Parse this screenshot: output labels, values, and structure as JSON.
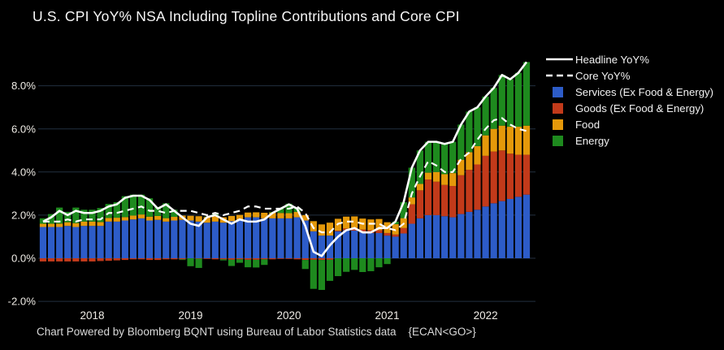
{
  "window": {
    "background": "#000000"
  },
  "title": "U.S. CPI YoY% NSA Including Topline Contributions and Core CPI",
  "footer": "Chart Powered by Bloomberg BQNT using Bureau of Labor Statistics data    {ECAN<GO>}",
  "legend": [
    {
      "label": "Headline YoY%",
      "swatch": "line-solid",
      "color": "#ffffff"
    },
    {
      "label": "Core YoY%",
      "swatch": "line-dashed",
      "color": "#ffffff"
    },
    {
      "label": "Services (Ex Food & Energy)",
      "swatch": "square",
      "color": "#2d5cc8"
    },
    {
      "label": "Goods (Ex Food & Energy)",
      "swatch": "square",
      "color": "#c23a1a"
    },
    {
      "label": "Food",
      "swatch": "square",
      "color": "#e5990a"
    },
    {
      "label": "Energy",
      "swatch": "square",
      "color": "#1e8a1e"
    }
  ],
  "chart_data": {
    "type": "bar",
    "subtype": "stacked-monthly-contributions-with-overlay-lines",
    "title": "U.S. CPI YoY% NSA Including Topline Contributions and Core CPI",
    "grid": true,
    "legend_position": "top-right",
    "background_color": "#000000",
    "grid_color": "#233140",
    "tick_color": "#efece6",
    "ylim": [
      -2.4,
      9.6
    ],
    "x": [
      "2017-07",
      "2017-08",
      "2017-09",
      "2017-10",
      "2017-11",
      "2017-12",
      "2018-01",
      "2018-02",
      "2018-03",
      "2018-04",
      "2018-05",
      "2018-06",
      "2018-07",
      "2018-08",
      "2018-09",
      "2018-10",
      "2018-11",
      "2018-12",
      "2019-01",
      "2019-02",
      "2019-03",
      "2019-04",
      "2019-05",
      "2019-06",
      "2019-07",
      "2019-08",
      "2019-09",
      "2019-10",
      "2019-11",
      "2019-12",
      "2020-01",
      "2020-02",
      "2020-03",
      "2020-04",
      "2020-05",
      "2020-06",
      "2020-07",
      "2020-08",
      "2020-09",
      "2020-10",
      "2020-11",
      "2020-12",
      "2021-01",
      "2021-02",
      "2021-03",
      "2021-04",
      "2021-05",
      "2021-06",
      "2021-07",
      "2021-08",
      "2021-09",
      "2021-10",
      "2021-11",
      "2021-12",
      "2022-01",
      "2022-02",
      "2022-03",
      "2022-04",
      "2022-05",
      "2022-06"
    ],
    "series": [
      {
        "name": "Services (Ex Food & Energy)",
        "color": "#2d5cc8",
        "values": [
          1.45,
          1.45,
          1.45,
          1.5,
          1.45,
          1.5,
          1.5,
          1.5,
          1.7,
          1.7,
          1.75,
          1.8,
          1.85,
          1.75,
          1.78,
          1.7,
          1.75,
          1.78,
          1.75,
          1.7,
          1.65,
          1.7,
          1.65,
          1.72,
          1.78,
          1.9,
          1.9,
          1.85,
          1.85,
          1.85,
          1.85,
          1.9,
          1.75,
          1.25,
          1.05,
          1.05,
          1.25,
          1.3,
          1.28,
          1.2,
          1.17,
          1.17,
          1.05,
          1.0,
          1.15,
          1.6,
          1.85,
          2.0,
          2.0,
          1.95,
          1.9,
          2.05,
          2.15,
          2.25,
          2.4,
          2.55,
          2.65,
          2.75,
          2.85,
          2.95
        ]
      },
      {
        "name": "Goods (Ex Food & Energy)",
        "color": "#c23a1a",
        "values": [
          -0.15,
          -0.15,
          -0.15,
          -0.15,
          -0.15,
          -0.15,
          -0.15,
          -0.13,
          -0.12,
          -0.1,
          -0.08,
          -0.05,
          -0.05,
          -0.08,
          -0.08,
          -0.05,
          -0.05,
          -0.05,
          0.0,
          -0.02,
          -0.03,
          -0.05,
          -0.05,
          -0.07,
          -0.05,
          -0.07,
          -0.07,
          -0.05,
          -0.05,
          -0.03,
          -0.03,
          -0.05,
          -0.08,
          -0.07,
          -0.08,
          -0.07,
          0.03,
          0.08,
          0.13,
          0.13,
          0.13,
          0.13,
          0.12,
          0.1,
          0.25,
          0.9,
          1.3,
          1.65,
          1.55,
          1.45,
          1.45,
          1.8,
          1.95,
          2.1,
          2.35,
          2.4,
          2.35,
          2.1,
          1.95,
          1.85
        ]
      },
      {
        "name": "Food",
        "color": "#e5990a",
        "values": [
          0.15,
          0.15,
          0.16,
          0.17,
          0.18,
          0.2,
          0.2,
          0.18,
          0.17,
          0.18,
          0.16,
          0.18,
          0.18,
          0.18,
          0.18,
          0.16,
          0.17,
          0.2,
          0.22,
          0.25,
          0.26,
          0.25,
          0.25,
          0.24,
          0.23,
          0.22,
          0.23,
          0.26,
          0.27,
          0.25,
          0.24,
          0.25,
          0.25,
          0.47,
          0.52,
          0.6,
          0.55,
          0.55,
          0.53,
          0.51,
          0.5,
          0.52,
          0.5,
          0.48,
          0.46,
          0.32,
          0.3,
          0.32,
          0.45,
          0.5,
          0.6,
          0.72,
          0.82,
          0.85,
          0.95,
          1.05,
          1.15,
          1.25,
          1.3,
          1.35
        ]
      },
      {
        "name": "Energy",
        "color": "#1e8a1e",
        "values": [
          0.25,
          0.45,
          0.74,
          0.48,
          0.72,
          0.55,
          0.55,
          0.65,
          0.65,
          0.72,
          0.97,
          0.97,
          0.92,
          0.85,
          0.42,
          0.69,
          0.33,
          -0.03,
          -0.37,
          -0.43,
          0.02,
          0.1,
          -0.05,
          -0.29,
          -0.16,
          -0.35,
          -0.36,
          -0.26,
          0.03,
          0.23,
          0.44,
          0.2,
          -0.42,
          -1.35,
          -1.39,
          -0.98,
          -0.83,
          -0.63,
          -0.54,
          -0.64,
          -0.6,
          -0.42,
          -0.27,
          0.12,
          0.74,
          1.38,
          1.55,
          1.43,
          1.4,
          1.4,
          1.45,
          1.63,
          1.88,
          1.8,
          1.8,
          1.9,
          2.35,
          2.2,
          2.5,
          2.95
        ]
      }
    ],
    "lines": [
      {
        "name": "Headline YoY%",
        "color": "#ffffff",
        "style": "solid",
        "values": [
          1.7,
          1.9,
          2.2,
          2.0,
          2.2,
          2.1,
          2.1,
          2.2,
          2.4,
          2.5,
          2.8,
          2.9,
          2.9,
          2.7,
          2.3,
          2.5,
          2.2,
          1.9,
          1.6,
          1.5,
          1.9,
          2.0,
          1.8,
          1.6,
          1.8,
          1.7,
          1.7,
          1.8,
          2.1,
          2.3,
          2.5,
          2.3,
          1.5,
          0.3,
          0.1,
          0.6,
          1.0,
          1.3,
          1.4,
          1.2,
          1.2,
          1.4,
          1.4,
          1.7,
          2.6,
          4.2,
          5.0,
          5.4,
          5.4,
          5.3,
          5.4,
          6.2,
          6.8,
          7.0,
          7.5,
          7.9,
          8.5,
          8.3,
          8.6,
          9.1
        ]
      },
      {
        "name": "Core YoY%",
        "color": "#ffffff",
        "style": "dashed",
        "values": [
          1.7,
          1.7,
          1.7,
          1.8,
          1.7,
          1.8,
          1.8,
          1.8,
          2.1,
          2.1,
          2.2,
          2.3,
          2.4,
          2.2,
          2.2,
          2.1,
          2.2,
          2.2,
          2.2,
          2.1,
          2.0,
          2.1,
          2.0,
          2.1,
          2.2,
          2.4,
          2.4,
          2.3,
          2.3,
          2.3,
          2.3,
          2.4,
          2.1,
          1.4,
          1.2,
          1.2,
          1.6,
          1.7,
          1.7,
          1.6,
          1.6,
          1.6,
          1.4,
          1.3,
          1.6,
          3.0,
          3.8,
          4.5,
          4.3,
          4.0,
          4.0,
          4.6,
          4.9,
          5.5,
          6.0,
          6.4,
          6.5,
          6.2,
          6.0,
          5.9
        ]
      }
    ],
    "yticks": {
      "values": [
        8,
        6,
        4,
        2,
        0,
        -2
      ],
      "labels": [
        "8.0%",
        "6.0%",
        "4.0%",
        "2.0%",
        "0.0%",
        "-2.0%"
      ]
    },
    "xticks": {
      "labels": [
        "2018",
        "2019",
        "2020",
        "2021",
        "2022"
      ],
      "month_index": [
        6,
        18,
        30,
        42,
        54
      ]
    }
  }
}
